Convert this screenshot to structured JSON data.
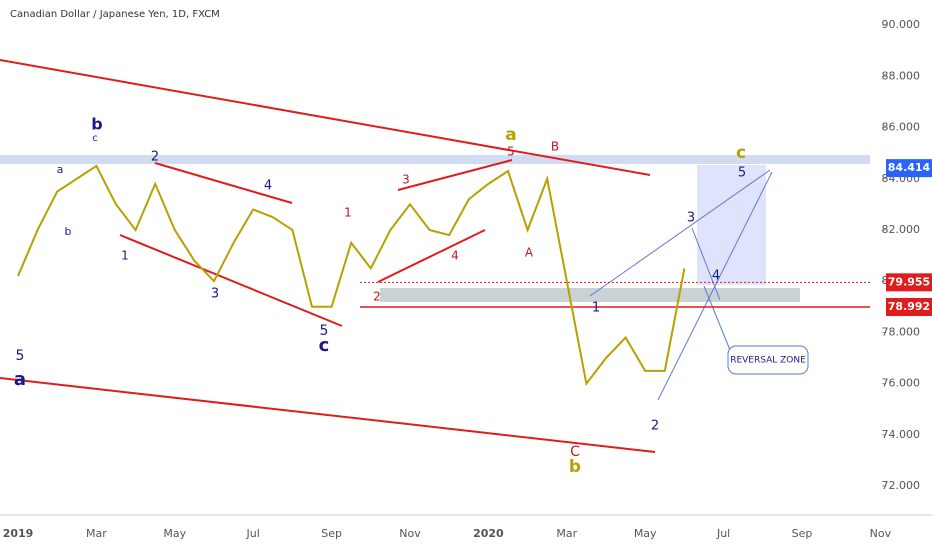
{
  "chart_data": {
    "type": "line",
    "title": "Canadian Dollar / Japanese Yen, 1D, FXCM",
    "categories": [
      "2019",
      null,
      null,
      null,
      "Mar",
      null,
      null,
      null,
      "May",
      null,
      null,
      null,
      "Jul",
      null,
      null,
      null,
      "Sep",
      null,
      null,
      null,
      "Nov",
      null,
      null,
      null,
      "2020",
      null,
      null,
      null,
      "Mar",
      null,
      null,
      null,
      "May",
      null,
      null,
      null,
      "Jul",
      null,
      null,
      null,
      "Sep",
      null,
      null,
      null,
      "Nov"
    ],
    "series": [
      {
        "color": "#b8a000",
        "values": [
          80.2,
          82,
          83.5,
          84,
          84.5,
          83,
          82,
          83.8,
          82,
          80.8,
          80,
          81.5,
          82.8,
          82.5,
          82,
          79,
          79,
          81.5,
          80.5,
          82,
          83,
          82,
          81.8,
          83.2,
          83.8,
          84.3,
          82,
          84,
          80,
          76,
          77,
          77.8,
          76.5,
          76.5,
          80.5,
          null,
          null,
          null,
          null,
          null,
          null,
          null,
          null,
          null,
          null
        ]
      }
    ],
    "ylim": [
      70.87,
      90.98
    ],
    "yticks": [
      {
        "value": 72,
        "label": "72.000"
      },
      {
        "value": 74,
        "label": "74.000"
      },
      {
        "value": 76,
        "label": "76.000"
      },
      {
        "value": 78,
        "label": "78.000"
      },
      {
        "value": 80,
        "label": "80.000"
      },
      {
        "value": 82,
        "label": "82.000"
      },
      {
        "value": 84,
        "label": "84.000"
      },
      {
        "value": 86,
        "label": "86.000"
      },
      {
        "value": 88,
        "label": "88.000"
      },
      {
        "value": 90,
        "label": "90.000"
      }
    ],
    "levels": [
      {
        "value": 84.414,
        "label": "84.414",
        "color": "#2962ff"
      },
      {
        "value": 79.955,
        "label": "79.955",
        "color": "#e01c1c"
      },
      {
        "value": 78.992,
        "label": "78.992",
        "color": "#e01c1c"
      }
    ],
    "annotations": [
      {
        "text": "b",
        "color": "#1a1a8c"
      },
      {
        "text": "c",
        "color": "#1a1a8c"
      },
      {
        "text": "a",
        "color": "#1a1a8c"
      },
      {
        "text": "b",
        "color": "#1a1a8c"
      },
      {
        "text": "1",
        "color": "#1a1a8c"
      },
      {
        "text": "2",
        "color": "#1a1a8c"
      },
      {
        "text": "3",
        "color": "#1a1a8c"
      },
      {
        "text": "4",
        "color": "#1a1a8c"
      },
      {
        "text": "5",
        "color": "#1a1a8c"
      },
      {
        "text": "c",
        "color": "#1a1a8c"
      },
      {
        "text": "5",
        "color": "#1a1a8c"
      },
      {
        "text": "a",
        "color": "#1a1a8c"
      },
      {
        "text": "1",
        "color": "#c2181b"
      },
      {
        "text": "2",
        "color": "#c2181b"
      },
      {
        "text": "3",
        "color": "#c2181b"
      },
      {
        "text": "4",
        "color": "#c2181b"
      },
      {
        "text": "5",
        "color": "#c2181b"
      },
      {
        "text": "B",
        "color": "#c2181b"
      },
      {
        "text": "A",
        "color": "#c2181b"
      },
      {
        "text": "C",
        "color": "#c2181b"
      },
      {
        "text": "a",
        "color": "#b8a000"
      },
      {
        "text": "c",
        "color": "#b8a000"
      },
      {
        "text": "b",
        "color": "#b8a000"
      },
      {
        "text": "5",
        "color": "#1a1a8c"
      },
      {
        "text": "1",
        "color": "#1a1a8c"
      },
      {
        "text": "2",
        "color": "#1a1a8c"
      },
      {
        "text": "3",
        "color": "#1a1a8c"
      },
      {
        "text": "4",
        "color": "#1a1a8c"
      },
      {
        "text": "REVERSAL ZONE",
        "color": "#1a1a8c"
      }
    ]
  }
}
